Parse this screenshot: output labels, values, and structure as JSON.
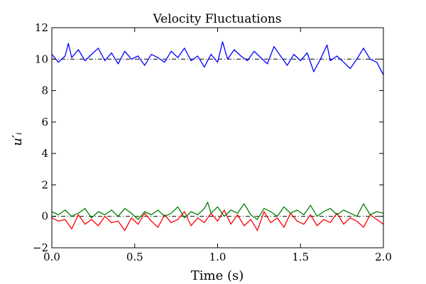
{
  "chart_data": {
    "type": "line",
    "title": "Velocity Fluctuations",
    "xlabel": "Time (s)",
    "ylabel": "u′ᵢ",
    "xlim": [
      0.0,
      2.0
    ],
    "ylim": [
      -2,
      12
    ],
    "x_ticks": [
      "0.0",
      "0.5",
      "1.0",
      "1.5",
      "2.0"
    ],
    "y_ticks": [
      "−2",
      "0",
      "2",
      "4",
      "6",
      "8",
      "10",
      "12"
    ],
    "grid": false,
    "legend": "none",
    "reference_lines": [
      {
        "y": 10,
        "style": "dash-dot",
        "color": "#000000"
      },
      {
        "y": 0,
        "style": "dash-dot",
        "color": "#000000"
      }
    ],
    "series": [
      {
        "color": "#0000ff",
        "x": [
          0.0,
          0.04,
          0.08,
          0.1,
          0.12,
          0.16,
          0.2,
          0.24,
          0.28,
          0.32,
          0.36,
          0.4,
          0.44,
          0.48,
          0.52,
          0.56,
          0.6,
          0.64,
          0.68,
          0.72,
          0.76,
          0.8,
          0.84,
          0.88,
          0.92,
          0.96,
          1.0,
          1.03,
          1.06,
          1.1,
          1.14,
          1.18,
          1.22,
          1.26,
          1.3,
          1.34,
          1.38,
          1.42,
          1.46,
          1.5,
          1.54,
          1.58,
          1.62,
          1.66,
          1.68,
          1.72,
          1.76,
          1.8,
          1.84,
          1.88,
          1.92,
          1.96,
          2.0
        ],
        "values": [
          10.3,
          9.8,
          10.2,
          11.0,
          10.1,
          10.6,
          9.9,
          10.3,
          10.7,
          9.9,
          10.4,
          9.7,
          10.5,
          10.0,
          10.2,
          9.6,
          10.3,
          10.1,
          9.8,
          10.5,
          10.1,
          10.7,
          9.9,
          10.2,
          9.5,
          10.3,
          9.8,
          11.1,
          10.0,
          10.6,
          10.2,
          9.9,
          10.5,
          10.1,
          9.7,
          10.8,
          10.2,
          9.6,
          10.3,
          9.9,
          10.4,
          9.2,
          10.0,
          10.9,
          9.9,
          10.2,
          9.8,
          9.4,
          10.0,
          10.7,
          10.0,
          9.8,
          9.0
        ]
      },
      {
        "color": "#ff0000",
        "x": [
          0.0,
          0.04,
          0.08,
          0.12,
          0.16,
          0.2,
          0.24,
          0.28,
          0.32,
          0.36,
          0.4,
          0.44,
          0.48,
          0.52,
          0.56,
          0.6,
          0.64,
          0.68,
          0.72,
          0.76,
          0.8,
          0.84,
          0.88,
          0.92,
          0.96,
          1.0,
          1.04,
          1.08,
          1.12,
          1.16,
          1.2,
          1.24,
          1.28,
          1.32,
          1.36,
          1.4,
          1.44,
          1.48,
          1.52,
          1.56,
          1.6,
          1.64,
          1.68,
          1.72,
          1.76,
          1.8,
          1.84,
          1.88,
          1.92,
          1.96,
          2.0
        ],
        "values": [
          -0.1,
          -0.3,
          -0.2,
          -0.8,
          0.1,
          -0.5,
          -0.2,
          -0.6,
          0.0,
          -0.4,
          -0.3,
          -0.9,
          -0.1,
          -0.5,
          0.2,
          -0.3,
          -0.7,
          0.1,
          -0.4,
          -0.2,
          0.3,
          -0.6,
          -0.1,
          -0.4,
          0.2,
          -0.3,
          0.4,
          -0.5,
          0.1,
          -0.6,
          -0.2,
          -0.9,
          0.3,
          -0.4,
          -0.1,
          -0.7,
          0.2,
          -0.3,
          -0.5,
          0.1,
          -0.6,
          -0.2,
          -0.4,
          0.2,
          -0.5,
          -0.1,
          -0.3,
          -0.7,
          0.1,
          -0.2,
          -0.5
        ]
      },
      {
        "color": "#008000",
        "x": [
          0.0,
          0.04,
          0.08,
          0.12,
          0.16,
          0.2,
          0.24,
          0.28,
          0.32,
          0.36,
          0.4,
          0.44,
          0.48,
          0.52,
          0.56,
          0.6,
          0.64,
          0.68,
          0.72,
          0.76,
          0.8,
          0.84,
          0.88,
          0.92,
          0.94,
          0.96,
          1.0,
          1.04,
          1.08,
          1.12,
          1.16,
          1.2,
          1.24,
          1.28,
          1.32,
          1.36,
          1.4,
          1.44,
          1.48,
          1.52,
          1.56,
          1.6,
          1.64,
          1.68,
          1.72,
          1.76,
          1.8,
          1.84,
          1.88,
          1.92,
          1.96,
          2.0
        ],
        "values": [
          0.3,
          0.1,
          0.4,
          0.0,
          0.2,
          0.5,
          -0.1,
          0.3,
          0.1,
          0.4,
          0.0,
          0.5,
          0.2,
          -0.2,
          0.3,
          0.1,
          0.4,
          0.0,
          0.2,
          0.6,
          -0.1,
          0.3,
          0.1,
          0.5,
          0.9,
          0.2,
          0.6,
          0.0,
          0.4,
          0.2,
          0.8,
          0.1,
          -0.2,
          0.5,
          0.3,
          0.0,
          0.6,
          0.2,
          0.4,
          0.1,
          0.7,
          0.0,
          0.3,
          0.5,
          0.1,
          0.4,
          0.2,
          0.0,
          0.8,
          0.1,
          0.3,
          0.2
        ]
      }
    ]
  }
}
